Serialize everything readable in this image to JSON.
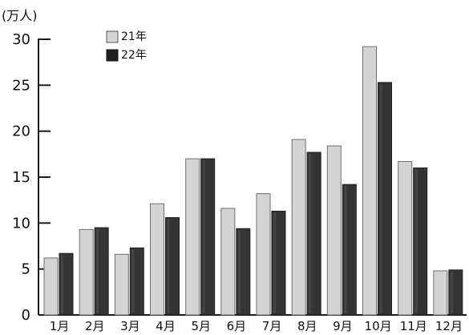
{
  "chart_data": {
    "type": "bar",
    "title": "",
    "xlabel": "",
    "ylabel": "",
    "unit_label": "(万人)",
    "categories": [
      "1月",
      "2月",
      "3月",
      "4月",
      "5月",
      "6月",
      "7月",
      "8月",
      "9月",
      "10月",
      "11月",
      "12月"
    ],
    "series": [
      {
        "name": "21年",
        "values": [
          6.2,
          9.3,
          6.6,
          12.1,
          17.0,
          11.6,
          13.2,
          19.1,
          18.4,
          29.2,
          16.7,
          4.8
        ],
        "color": "#d3d3d3"
      },
      {
        "name": "22年",
        "values": [
          6.7,
          9.5,
          7.3,
          10.6,
          17.0,
          9.4,
          11.3,
          17.7,
          14.2,
          25.3,
          16.0,
          4.9
        ],
        "color": "#333333"
      }
    ],
    "ylim": [
      0,
      30
    ],
    "yticks": [
      0,
      5,
      10,
      15,
      20,
      25,
      30
    ],
    "grid": false,
    "legend": {
      "position": "top-left",
      "entries": [
        "21年",
        "22年"
      ]
    }
  }
}
